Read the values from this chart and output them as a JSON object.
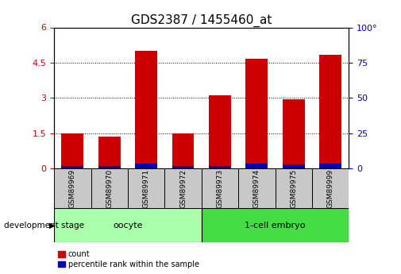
{
  "title": "GDS2387 / 1455460_at",
  "samples": [
    "GSM89969",
    "GSM89970",
    "GSM89971",
    "GSM89972",
    "GSM89973",
    "GSM89974",
    "GSM89975",
    "GSM89999"
  ],
  "count_values": [
    1.5,
    1.35,
    5.0,
    1.5,
    3.1,
    4.65,
    2.95,
    4.85
  ],
  "percentile_values": [
    0.12,
    0.12,
    0.2,
    0.12,
    0.12,
    0.2,
    0.18,
    0.2
  ],
  "bar_color_red": "#CC0000",
  "bar_color_blue": "#0000BB",
  "ylim_left": [
    0,
    6
  ],
  "ylim_right": [
    0,
    100
  ],
  "yticks_left": [
    0,
    1.5,
    3.0,
    4.5,
    6.0
  ],
  "ytick_labels_left": [
    "0",
    "1.5",
    "3",
    "4.5",
    "6"
  ],
  "yticks_right": [
    0,
    25,
    50,
    75,
    100
  ],
  "ytick_labels_right": [
    "0",
    "25",
    "50",
    "75",
    "100°"
  ],
  "groups": [
    {
      "label": "oocyte",
      "indices": [
        0,
        1,
        2,
        3
      ],
      "color": "#AAFFAA"
    },
    {
      "label": "1-cell embryo",
      "indices": [
        4,
        5,
        6,
        7
      ],
      "color": "#44DD44"
    }
  ],
  "group_label_text": "development stage",
  "legend_count_label": "count",
  "legend_percentile_label": "percentile rank within the sample",
  "title_fontsize": 11,
  "tick_label_fontsize": 8,
  "axis_label_color_left": "#CC0000",
  "axis_label_color_right": "#0000BB",
  "bar_width": 0.6
}
